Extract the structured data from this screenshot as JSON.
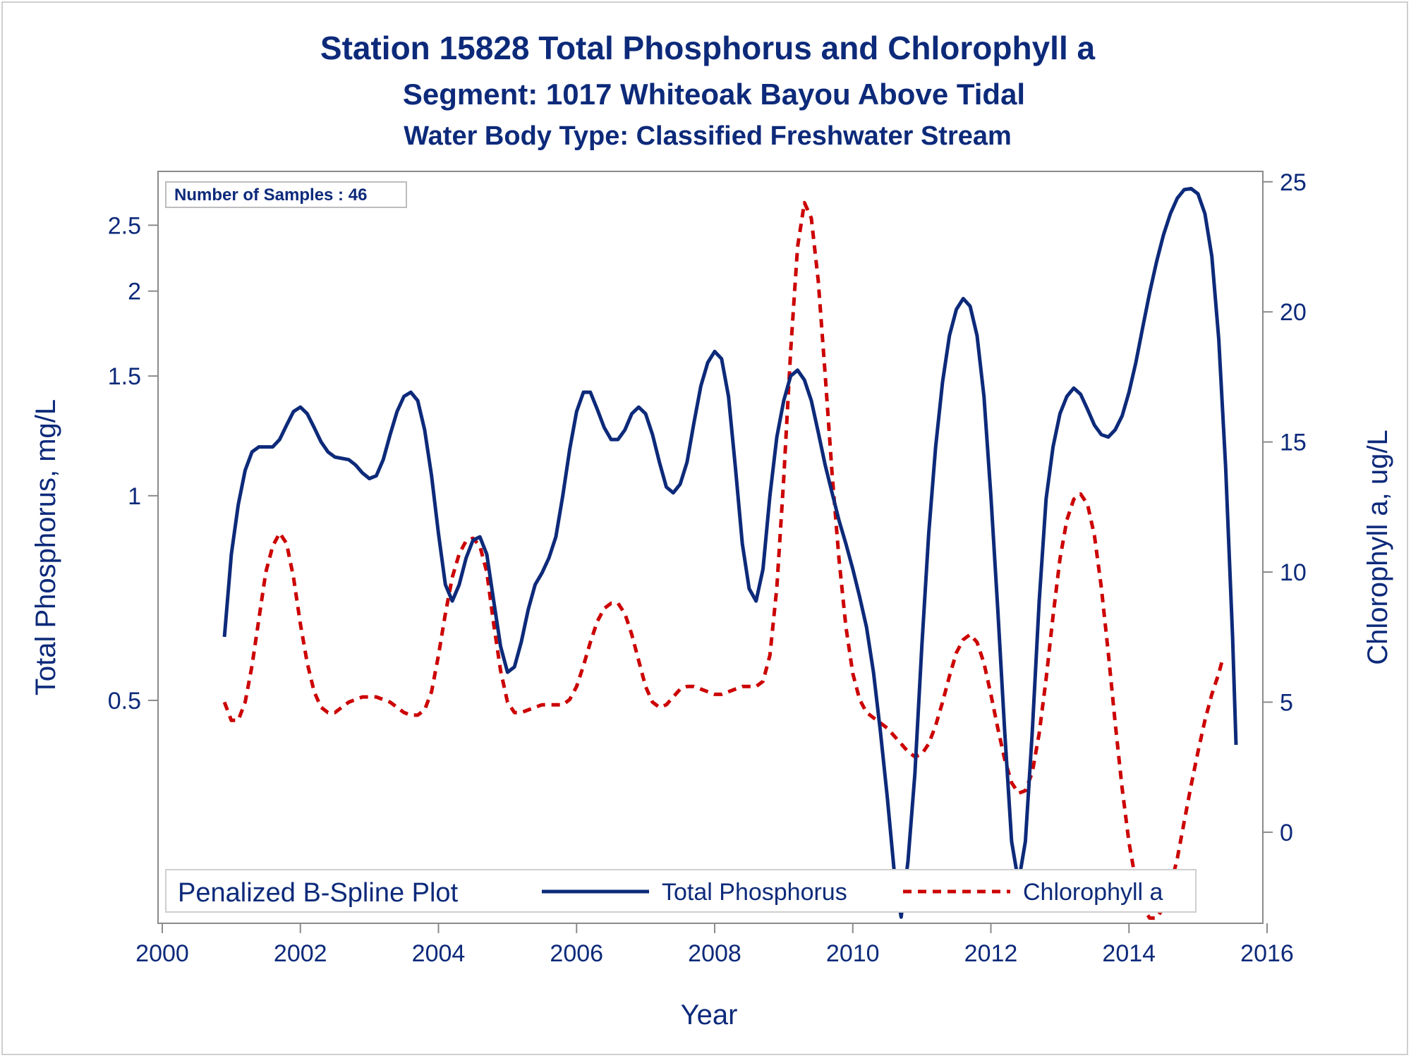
{
  "chart_data": {
    "type": "line",
    "title": "Station 15828  Total Phosphorus and Chlorophyll a",
    "subtitle": "Segment: 1017  Whiteoak Bayou Above Tidal",
    "subtitle2": "Water Body Type: Classified Freshwater Stream",
    "xlabel": "Year",
    "ylabel_left": "Total Phosphorus, mg/L",
    "ylabel_right": "Chlorophyll a, ug/L",
    "y_left_scale": "log",
    "xlim": [
      2000,
      2016
    ],
    "ylim_left": [
      0.235,
      3.0
    ],
    "ylim_right": [
      -3.5,
      25.4
    ],
    "x_ticks": [
      "2000",
      "2002",
      "2004",
      "2006",
      "2008",
      "2010",
      "2012",
      "2014",
      "2016"
    ],
    "x_tick_values": [
      2000,
      2002,
      2004,
      2006,
      2008,
      2010,
      2012,
      2014,
      2016
    ],
    "y_left_ticks": [
      "0.5",
      "1",
      "1.5",
      "2",
      "2.5"
    ],
    "y_left_tick_values": [
      0.5,
      1,
      1.5,
      2,
      2.5
    ],
    "y_right_ticks": [
      "0",
      "5",
      "10",
      "15",
      "20",
      "25"
    ],
    "y_right_tick_values": [
      0,
      5,
      10,
      15,
      20,
      25
    ],
    "grid": false,
    "inset_label": "Number of Samples : 46",
    "legend": {
      "title": "Penalized B-Spline Plot",
      "placement": "bottom-inside"
    },
    "series": [
      {
        "name": "Total Phosphorus",
        "axis": "left",
        "color": "#0d2a7a",
        "style": "solid",
        "points": [
          [
            2000.9,
            0.62
          ],
          [
            2001.0,
            0.82
          ],
          [
            2001.1,
            0.97
          ],
          [
            2001.2,
            1.09
          ],
          [
            2001.3,
            1.16
          ],
          [
            2001.4,
            1.18
          ],
          [
            2001.6,
            1.18
          ],
          [
            2001.7,
            1.21
          ],
          [
            2001.8,
            1.27
          ],
          [
            2001.9,
            1.33
          ],
          [
            2002.0,
            1.35
          ],
          [
            2002.1,
            1.32
          ],
          [
            2002.2,
            1.26
          ],
          [
            2002.3,
            1.2
          ],
          [
            2002.4,
            1.16
          ],
          [
            2002.5,
            1.14
          ],
          [
            2002.7,
            1.13
          ],
          [
            2002.8,
            1.11
          ],
          [
            2002.9,
            1.08
          ],
          [
            2003.0,
            1.06
          ],
          [
            2003.1,
            1.07
          ],
          [
            2003.2,
            1.13
          ],
          [
            2003.3,
            1.23
          ],
          [
            2003.4,
            1.33
          ],
          [
            2003.5,
            1.4
          ],
          [
            2003.6,
            1.42
          ],
          [
            2003.7,
            1.38
          ],
          [
            2003.8,
            1.25
          ],
          [
            2003.9,
            1.07
          ],
          [
            2004.0,
            0.88
          ],
          [
            2004.1,
            0.74
          ],
          [
            2004.2,
            0.7
          ],
          [
            2004.3,
            0.74
          ],
          [
            2004.4,
            0.81
          ],
          [
            2004.5,
            0.86
          ],
          [
            2004.6,
            0.87
          ],
          [
            2004.7,
            0.82
          ],
          [
            2004.8,
            0.7
          ],
          [
            2004.9,
            0.6
          ],
          [
            2005.0,
            0.55
          ],
          [
            2005.1,
            0.56
          ],
          [
            2005.2,
            0.61
          ],
          [
            2005.3,
            0.68
          ],
          [
            2005.4,
            0.74
          ],
          [
            2005.5,
            0.77
          ],
          [
            2005.6,
            0.81
          ],
          [
            2005.7,
            0.87
          ],
          [
            2005.8,
            1.0
          ],
          [
            2005.9,
            1.17
          ],
          [
            2006.0,
            1.33
          ],
          [
            2006.1,
            1.42
          ],
          [
            2006.2,
            1.42
          ],
          [
            2006.3,
            1.34
          ],
          [
            2006.4,
            1.26
          ],
          [
            2006.5,
            1.21
          ],
          [
            2006.6,
            1.21
          ],
          [
            2006.7,
            1.25
          ],
          [
            2006.8,
            1.32
          ],
          [
            2006.9,
            1.35
          ],
          [
            2007.0,
            1.32
          ],
          [
            2007.1,
            1.23
          ],
          [
            2007.2,
            1.12
          ],
          [
            2007.3,
            1.03
          ],
          [
            2007.4,
            1.01
          ],
          [
            2007.5,
            1.04
          ],
          [
            2007.6,
            1.12
          ],
          [
            2007.7,
            1.28
          ],
          [
            2007.8,
            1.45
          ],
          [
            2007.9,
            1.57
          ],
          [
            2008.0,
            1.63
          ],
          [
            2008.1,
            1.59
          ],
          [
            2008.2,
            1.4
          ],
          [
            2008.3,
            1.1
          ],
          [
            2008.4,
            0.85
          ],
          [
            2008.5,
            0.73
          ],
          [
            2008.6,
            0.7
          ],
          [
            2008.7,
            0.78
          ],
          [
            2008.8,
            1.0
          ],
          [
            2008.9,
            1.22
          ],
          [
            2009.0,
            1.38
          ],
          [
            2009.1,
            1.5
          ],
          [
            2009.2,
            1.53
          ],
          [
            2009.3,
            1.48
          ],
          [
            2009.4,
            1.38
          ],
          [
            2009.5,
            1.24
          ],
          [
            2009.6,
            1.11
          ],
          [
            2009.7,
            1.01
          ],
          [
            2009.8,
            0.92
          ],
          [
            2009.9,
            0.85
          ],
          [
            2010.0,
            0.78
          ],
          [
            2010.1,
            0.71
          ],
          [
            2010.2,
            0.64
          ],
          [
            2010.3,
            0.55
          ],
          [
            2010.4,
            0.45
          ],
          [
            2010.5,
            0.36
          ],
          [
            2010.6,
            0.28
          ],
          [
            2010.7,
            0.24
          ],
          [
            2010.8,
            0.29
          ],
          [
            2010.9,
            0.39
          ],
          [
            2011.0,
            0.6
          ],
          [
            2011.1,
            0.88
          ],
          [
            2011.2,
            1.18
          ],
          [
            2011.3,
            1.47
          ],
          [
            2011.4,
            1.72
          ],
          [
            2011.5,
            1.88
          ],
          [
            2011.6,
            1.95
          ],
          [
            2011.7,
            1.9
          ],
          [
            2011.8,
            1.72
          ],
          [
            2011.9,
            1.4
          ],
          [
            2012.0,
            1.0
          ],
          [
            2012.1,
            0.68
          ],
          [
            2012.2,
            0.45
          ],
          [
            2012.3,
            0.31
          ],
          [
            2012.4,
            0.27
          ],
          [
            2012.5,
            0.31
          ],
          [
            2012.6,
            0.45
          ],
          [
            2012.7,
            0.7
          ],
          [
            2012.8,
            0.99
          ],
          [
            2012.9,
            1.18
          ],
          [
            2013.0,
            1.32
          ],
          [
            2013.1,
            1.4
          ],
          [
            2013.2,
            1.44
          ],
          [
            2013.3,
            1.41
          ],
          [
            2013.4,
            1.34
          ],
          [
            2013.5,
            1.27
          ],
          [
            2013.6,
            1.23
          ],
          [
            2013.7,
            1.22
          ],
          [
            2013.8,
            1.25
          ],
          [
            2013.9,
            1.31
          ],
          [
            2014.0,
            1.42
          ],
          [
            2014.1,
            1.57
          ],
          [
            2014.2,
            1.77
          ],
          [
            2014.3,
            1.99
          ],
          [
            2014.4,
            2.21
          ],
          [
            2014.5,
            2.42
          ],
          [
            2014.6,
            2.6
          ],
          [
            2014.7,
            2.74
          ],
          [
            2014.8,
            2.82
          ],
          [
            2014.9,
            2.83
          ],
          [
            2015.0,
            2.78
          ],
          [
            2015.1,
            2.6
          ],
          [
            2015.2,
            2.25
          ],
          [
            2015.3,
            1.7
          ],
          [
            2015.4,
            1.1
          ],
          [
            2015.5,
            0.62
          ],
          [
            2015.55,
            0.43
          ]
        ]
      },
      {
        "name": "Chlorophyll a",
        "axis": "right",
        "color": "#cc0000",
        "style": "dashed",
        "points": [
          [
            2000.9,
            5.0
          ],
          [
            2001.0,
            4.3
          ],
          [
            2001.1,
            4.3
          ],
          [
            2001.2,
            5.0
          ],
          [
            2001.3,
            6.4
          ],
          [
            2001.4,
            8.2
          ],
          [
            2001.5,
            10.0
          ],
          [
            2001.6,
            11.0
          ],
          [
            2001.7,
            11.5
          ],
          [
            2001.8,
            11.1
          ],
          [
            2001.9,
            9.8
          ],
          [
            2002.0,
            8.0
          ],
          [
            2002.1,
            6.5
          ],
          [
            2002.2,
            5.4
          ],
          [
            2002.3,
            4.8
          ],
          [
            2002.4,
            4.6
          ],
          [
            2002.5,
            4.6
          ],
          [
            2002.6,
            4.8
          ],
          [
            2002.7,
            5.0
          ],
          [
            2002.8,
            5.1
          ],
          [
            2002.9,
            5.2
          ],
          [
            2003.0,
            5.2
          ],
          [
            2003.1,
            5.2
          ],
          [
            2003.2,
            5.1
          ],
          [
            2003.3,
            5.0
          ],
          [
            2003.4,
            4.8
          ],
          [
            2003.5,
            4.6
          ],
          [
            2003.6,
            4.5
          ],
          [
            2003.7,
            4.5
          ],
          [
            2003.8,
            4.7
          ],
          [
            2003.9,
            5.4
          ],
          [
            2004.0,
            6.8
          ],
          [
            2004.1,
            8.4
          ],
          [
            2004.2,
            9.8
          ],
          [
            2004.3,
            10.7
          ],
          [
            2004.4,
            11.2
          ],
          [
            2004.5,
            11.3
          ],
          [
            2004.6,
            11.0
          ],
          [
            2004.7,
            10.0
          ],
          [
            2004.8,
            8.0
          ],
          [
            2004.9,
            6.2
          ],
          [
            2005.0,
            5.0
          ],
          [
            2005.1,
            4.6
          ],
          [
            2005.2,
            4.6
          ],
          [
            2005.3,
            4.7
          ],
          [
            2005.4,
            4.8
          ],
          [
            2005.5,
            4.9
          ],
          [
            2005.6,
            4.9
          ],
          [
            2005.7,
            4.9
          ],
          [
            2005.8,
            4.9
          ],
          [
            2005.9,
            5.1
          ],
          [
            2006.0,
            5.6
          ],
          [
            2006.1,
            6.4
          ],
          [
            2006.2,
            7.3
          ],
          [
            2006.3,
            8.1
          ],
          [
            2006.4,
            8.6
          ],
          [
            2006.5,
            8.8
          ],
          [
            2006.6,
            8.8
          ],
          [
            2006.7,
            8.4
          ],
          [
            2006.8,
            7.6
          ],
          [
            2006.9,
            6.6
          ],
          [
            2007.0,
            5.6
          ],
          [
            2007.1,
            5.0
          ],
          [
            2007.2,
            4.8
          ],
          [
            2007.3,
            4.9
          ],
          [
            2007.4,
            5.2
          ],
          [
            2007.5,
            5.5
          ],
          [
            2007.6,
            5.6
          ],
          [
            2007.7,
            5.6
          ],
          [
            2007.8,
            5.5
          ],
          [
            2007.9,
            5.4
          ],
          [
            2008.0,
            5.3
          ],
          [
            2008.1,
            5.3
          ],
          [
            2008.2,
            5.4
          ],
          [
            2008.3,
            5.5
          ],
          [
            2008.4,
            5.6
          ],
          [
            2008.5,
            5.6
          ],
          [
            2008.6,
            5.6
          ],
          [
            2008.7,
            5.8
          ],
          [
            2008.8,
            6.8
          ],
          [
            2008.9,
            9.4
          ],
          [
            2009.0,
            13.6
          ],
          [
            2009.1,
            18.5
          ],
          [
            2009.2,
            22.5
          ],
          [
            2009.3,
            24.2
          ],
          [
            2009.4,
            23.6
          ],
          [
            2009.5,
            21.2
          ],
          [
            2009.6,
            17.6
          ],
          [
            2009.7,
            13.8
          ],
          [
            2009.8,
            10.5
          ],
          [
            2009.9,
            7.9
          ],
          [
            2010.0,
            6.1
          ],
          [
            2010.1,
            5.1
          ],
          [
            2010.2,
            4.6
          ],
          [
            2010.3,
            4.4
          ],
          [
            2010.4,
            4.2
          ],
          [
            2010.5,
            4.0
          ],
          [
            2010.6,
            3.7
          ],
          [
            2010.7,
            3.4
          ],
          [
            2010.8,
            3.1
          ],
          [
            2010.9,
            2.9
          ],
          [
            2011.0,
            3.0
          ],
          [
            2011.1,
            3.4
          ],
          [
            2011.2,
            4.1
          ],
          [
            2011.3,
            5.0
          ],
          [
            2011.4,
            6.0
          ],
          [
            2011.5,
            6.9
          ],
          [
            2011.6,
            7.4
          ],
          [
            2011.7,
            7.6
          ],
          [
            2011.8,
            7.3
          ],
          [
            2011.9,
            6.5
          ],
          [
            2012.0,
            5.3
          ],
          [
            2012.1,
            4.0
          ],
          [
            2012.2,
            2.8
          ],
          [
            2012.3,
            1.9
          ],
          [
            2012.4,
            1.5
          ],
          [
            2012.5,
            1.6
          ],
          [
            2012.6,
            2.3
          ],
          [
            2012.7,
            3.8
          ],
          [
            2012.8,
            5.9
          ],
          [
            2012.9,
            8.3
          ],
          [
            2013.0,
            10.5
          ],
          [
            2013.1,
            12.0
          ],
          [
            2013.2,
            12.8
          ],
          [
            2013.3,
            13.0
          ],
          [
            2013.4,
            12.6
          ],
          [
            2013.5,
            11.4
          ],
          [
            2013.6,
            9.4
          ],
          [
            2013.7,
            6.9
          ],
          [
            2013.8,
            4.2
          ],
          [
            2013.9,
            1.7
          ],
          [
            2014.0,
            -0.4
          ],
          [
            2014.1,
            -1.9
          ],
          [
            2014.2,
            -2.9
          ],
          [
            2014.3,
            -3.3
          ],
          [
            2014.4,
            -3.3
          ],
          [
            2014.5,
            -2.9
          ],
          [
            2014.6,
            -2.1
          ],
          [
            2014.7,
            -1.0
          ],
          [
            2014.8,
            0.4
          ],
          [
            2014.9,
            1.8
          ],
          [
            2015.0,
            3.1
          ],
          [
            2015.1,
            4.3
          ],
          [
            2015.2,
            5.3
          ],
          [
            2015.3,
            6.1
          ],
          [
            2015.35,
            6.6
          ]
        ]
      }
    ]
  }
}
